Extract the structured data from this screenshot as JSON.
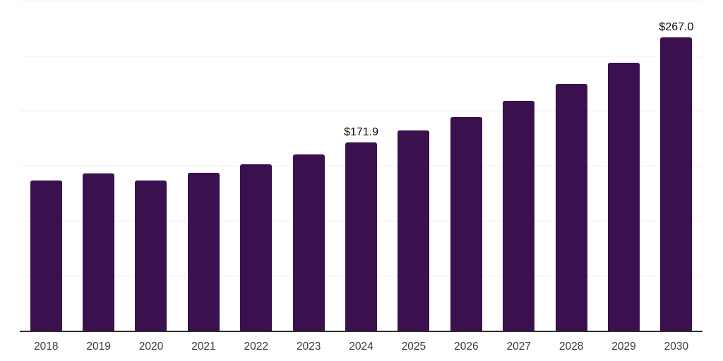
{
  "chart_data": {
    "type": "bar",
    "title": "",
    "xlabel": "",
    "ylabel": "",
    "categories": [
      "2018",
      "2019",
      "2020",
      "2021",
      "2022",
      "2023",
      "2024",
      "2025",
      "2026",
      "2027",
      "2028",
      "2029",
      "2030"
    ],
    "values": [
      137.0,
      143.3,
      137.4,
      144.4,
      151.8,
      160.7,
      171.9,
      183.0,
      195.0,
      209.4,
      225.3,
      244.3,
      267.0
    ],
    "data_labels": [
      null,
      null,
      null,
      null,
      null,
      null,
      "$171.9",
      null,
      null,
      null,
      null,
      null,
      "$267.0"
    ],
    "ylim": [
      0,
      300
    ],
    "gridline_step": 50,
    "grid": true,
    "legend": false,
    "y_axis_labels_shown": false,
    "colors": {
      "bar": "#3a114e",
      "gridline": "#ececec",
      "axis_line": "#2d2d2d",
      "tick_label": "#3a3a3a",
      "data_label": "#0a0a0a",
      "background": "#ffffff"
    }
  }
}
